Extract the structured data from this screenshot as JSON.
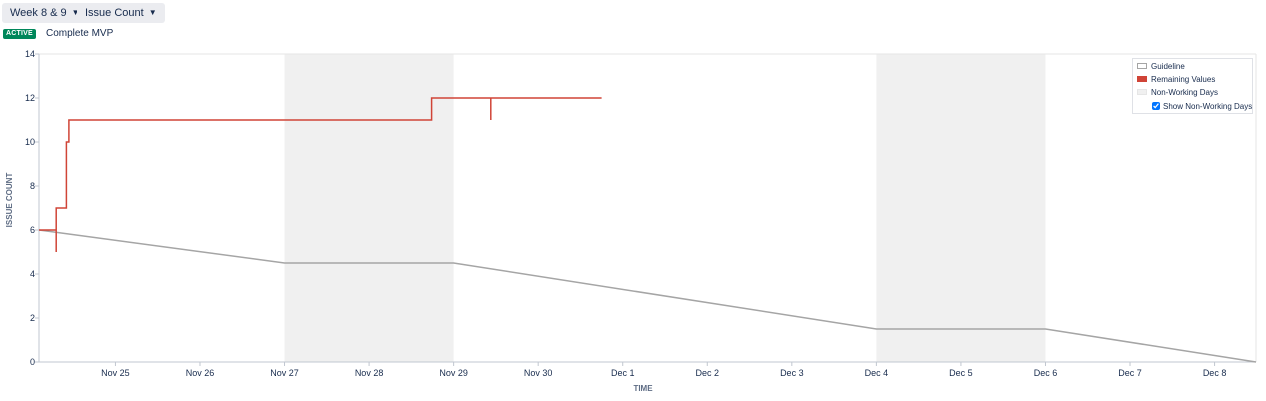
{
  "toolbar": {
    "sprint_select": "Week 8 & 9",
    "statistic_select": "Issue Count"
  },
  "sprint": {
    "status": "ACTIVE",
    "name": "Complete MVP"
  },
  "colors": {
    "guideline": "#a5a5a5",
    "remaining": "#d04437",
    "non_working": "#f0f0f0",
    "status_active": "#00875a"
  },
  "legend": {
    "guideline": "Guideline",
    "remaining": "Remaining Values",
    "non_working": "Non-Working Days",
    "show_non_working": "Show Non-Working Days",
    "show_non_working_checked": true,
    "placement": "top-right"
  },
  "chart_data": {
    "type": "line",
    "xlabel": "TIME",
    "ylabel": "ISSUE COUNT",
    "ylim": [
      0,
      14
    ],
    "yticks": [
      0,
      2,
      4,
      6,
      8,
      10,
      12,
      14
    ],
    "xlim": [
      "Nov 24 2.3h",
      "Dec 8 11.8h"
    ],
    "x_unit": "days since Nov 24 00:00",
    "x_range_days": [
      0.096,
      14.49
    ],
    "xticks": [
      {
        "day": 1,
        "label": "Nov 25"
      },
      {
        "day": 2,
        "label": "Nov 26"
      },
      {
        "day": 3,
        "label": "Nov 27"
      },
      {
        "day": 4,
        "label": "Nov 28"
      },
      {
        "day": 5,
        "label": "Nov 29"
      },
      {
        "day": 6,
        "label": "Nov 30"
      },
      {
        "day": 7,
        "label": "Dec 1"
      },
      {
        "day": 8,
        "label": "Dec 2"
      },
      {
        "day": 9,
        "label": "Dec 3"
      },
      {
        "day": 10,
        "label": "Dec 4"
      },
      {
        "day": 11,
        "label": "Dec 5"
      },
      {
        "day": 12,
        "label": "Dec 6"
      },
      {
        "day": 13,
        "label": "Dec 7"
      },
      {
        "day": 14,
        "label": "Dec 8"
      }
    ],
    "non_working_periods": [
      [
        3,
        5
      ],
      [
        10,
        12
      ]
    ],
    "series": [
      {
        "name": "Guideline",
        "step": false,
        "points": [
          [
            0.096,
            6
          ],
          [
            3,
            4.5
          ],
          [
            5,
            4.5
          ],
          [
            10,
            1.5
          ],
          [
            12,
            1.5
          ],
          [
            14.49,
            0
          ]
        ]
      },
      {
        "name": "Remaining Values",
        "step": true,
        "points": [
          [
            0.096,
            6
          ],
          [
            0.3,
            6
          ],
          [
            0.3,
            5
          ],
          [
            0.3,
            7
          ],
          [
            0.42,
            7
          ],
          [
            0.42,
            10
          ],
          [
            0.45,
            10
          ],
          [
            0.45,
            11
          ],
          [
            4.74,
            11
          ],
          [
            4.74,
            12
          ],
          [
            5.44,
            12
          ],
          [
            5.44,
            11
          ],
          [
            5.44,
            12
          ],
          [
            6.75,
            12
          ]
        ]
      }
    ]
  }
}
